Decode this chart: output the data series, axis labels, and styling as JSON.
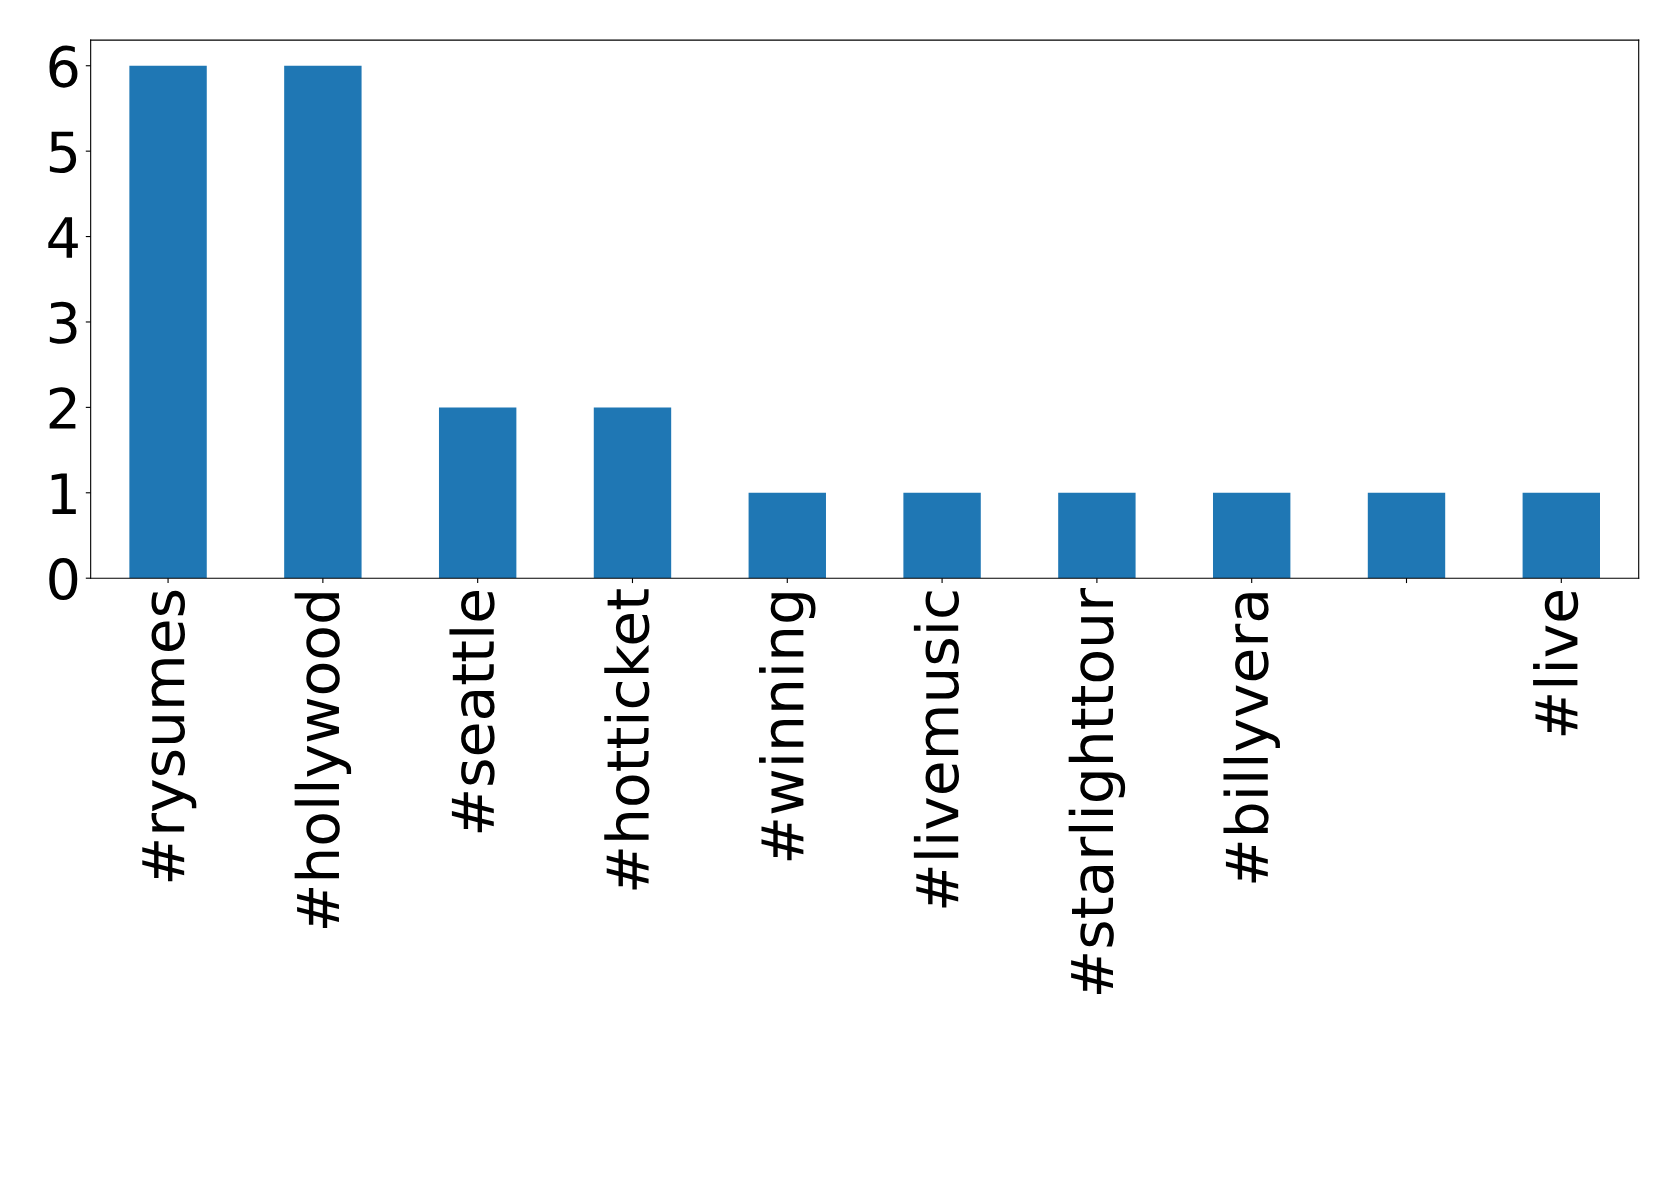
{
  "chart_data": {
    "type": "bar",
    "categories": [
      "#rysumes",
      "#hollywood",
      "#seattle",
      "#hotticket",
      "#winning",
      "#livemusic",
      "#starlighttour",
      "#billyvera",
      null,
      "#live"
    ],
    "values": [
      6,
      6,
      2,
      2,
      1,
      1,
      1,
      1,
      1,
      1
    ],
    "color": "#1f77b4",
    "ylim": [
      0,
      6.3
    ],
    "yticks": [
      0,
      1,
      2,
      3,
      4,
      5,
      6
    ],
    "grid": false
  }
}
